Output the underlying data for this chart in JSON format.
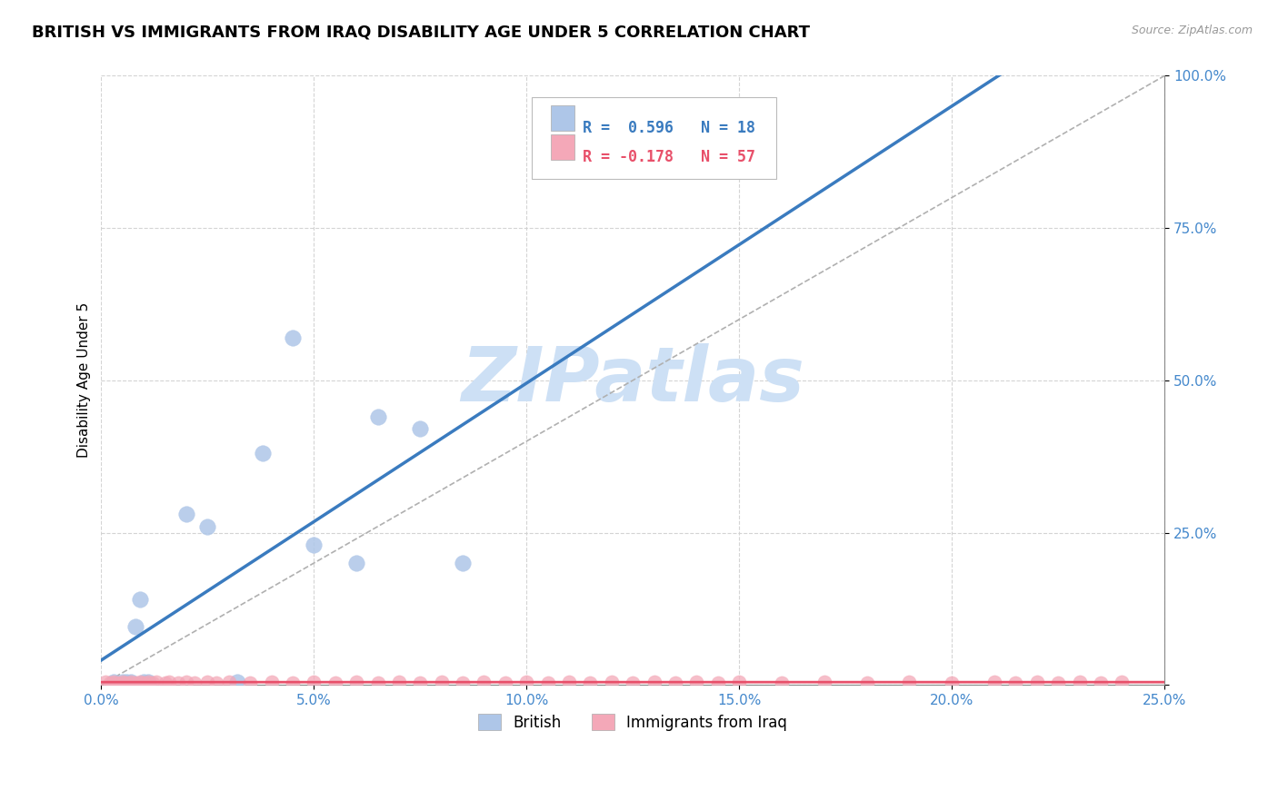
{
  "title": "BRITISH VS IMMIGRANTS FROM IRAQ DISABILITY AGE UNDER 5 CORRELATION CHART",
  "source": "Source: ZipAtlas.com",
  "ylabel": "Disability Age Under 5",
  "xlim": [
    0.0,
    0.25
  ],
  "ylim": [
    0.0,
    1.0
  ],
  "xticks": [
    0.0,
    0.05,
    0.1,
    0.15,
    0.2,
    0.25
  ],
  "yticks": [
    0.0,
    0.25,
    0.5,
    0.75,
    1.0
  ],
  "xticklabels": [
    "0.0%",
    "5.0%",
    "10.0%",
    "15.0%",
    "20.0%",
    "25.0%"
  ],
  "yticklabels": [
    "",
    "25.0%",
    "50.0%",
    "75.0%",
    "100.0%"
  ],
  "british_R": 0.596,
  "british_N": 18,
  "iraq_R": -0.178,
  "iraq_N": 57,
  "british_color": "#aec6e8",
  "iraq_color": "#f4a8b8",
  "british_line_color": "#3a7bbf",
  "iraq_line_color": "#e8506a",
  "ref_line_color": "#b0b0b0",
  "background_color": "#ffffff",
  "grid_color": "#d0d0d0",
  "title_fontsize": 13,
  "axis_label_fontsize": 11,
  "tick_fontsize": 11,
  "watermark_text": "ZIPatlas",
  "watermark_color": "#cde0f5",
  "watermark_fontsize": 60,
  "british_x": [
    0.003,
    0.005,
    0.006,
    0.007,
    0.008,
    0.009,
    0.01,
    0.011,
    0.02,
    0.025,
    0.032,
    0.038,
    0.045,
    0.05,
    0.06,
    0.065,
    0.075,
    0.085
  ],
  "british_y": [
    0.005,
    0.005,
    0.005,
    0.005,
    0.095,
    0.14,
    0.005,
    0.005,
    0.28,
    0.26,
    0.005,
    0.38,
    0.57,
    0.23,
    0.2,
    0.44,
    0.42,
    0.2
  ],
  "iraq_x": [
    0.001,
    0.002,
    0.003,
    0.004,
    0.005,
    0.006,
    0.007,
    0.008,
    0.009,
    0.01,
    0.011,
    0.012,
    0.013,
    0.015,
    0.016,
    0.018,
    0.02,
    0.022,
    0.025,
    0.027,
    0.03,
    0.035,
    0.04,
    0.045,
    0.05,
    0.055,
    0.06,
    0.065,
    0.07,
    0.075,
    0.08,
    0.085,
    0.09,
    0.095,
    0.1,
    0.105,
    0.11,
    0.115,
    0.12,
    0.125,
    0.13,
    0.135,
    0.14,
    0.145,
    0.15,
    0.16,
    0.17,
    0.18,
    0.19,
    0.2,
    0.21,
    0.215,
    0.22,
    0.225,
    0.23,
    0.235,
    0.24
  ],
  "iraq_y": [
    0.005,
    0.004,
    0.005,
    0.004,
    0.005,
    0.004,
    0.005,
    0.004,
    0.005,
    0.004,
    0.005,
    0.004,
    0.005,
    0.004,
    0.005,
    0.004,
    0.005,
    0.004,
    0.005,
    0.004,
    0.005,
    0.004,
    0.005,
    0.004,
    0.005,
    0.004,
    0.005,
    0.004,
    0.005,
    0.004,
    0.005,
    0.004,
    0.005,
    0.004,
    0.005,
    0.004,
    0.005,
    0.004,
    0.005,
    0.004,
    0.005,
    0.004,
    0.005,
    0.004,
    0.005,
    0.004,
    0.005,
    0.004,
    0.005,
    0.004,
    0.005,
    0.004,
    0.005,
    0.004,
    0.005,
    0.004,
    0.005
  ]
}
